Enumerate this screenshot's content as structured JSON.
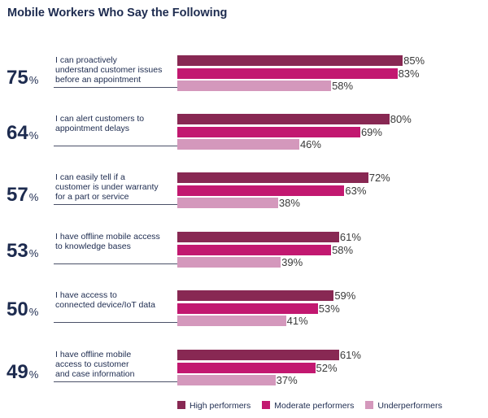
{
  "title": "Mobile Workers Who Say the Following",
  "colors": {
    "High performers": "#882853",
    "Moderate performers": "#c21870",
    "Underperformers": "#d498bc"
  },
  "chart_data": {
    "type": "bar",
    "orientation": "horizontal",
    "title": "Mobile Workers Who Say the Following",
    "xlim": [
      0,
      100
    ],
    "legend_position": "bottom",
    "series_names": [
      "High performers",
      "Moderate performers",
      "Underperformers"
    ],
    "groups": [
      {
        "overall": "75",
        "label": "I can proactively understand customer issues before an appointment",
        "lines": [
          "I can proactively",
          "understand customer issues",
          "before an appointment"
        ],
        "values": [
          85,
          83,
          58
        ]
      },
      {
        "overall": "64",
        "label": "I can alert customers to appointment delays",
        "lines": [
          "I can alert customers to",
          "appointment delays"
        ],
        "values": [
          80,
          69,
          46
        ]
      },
      {
        "overall": "57",
        "label": "I can easily tell if a customer is under warranty for a part or service",
        "lines": [
          "I can easily tell if a",
          "customer is under warranty",
          "for a part or service"
        ],
        "values": [
          72,
          63,
          38
        ]
      },
      {
        "overall": "53",
        "label": "I have offline mobile access to knowledge bases",
        "lines": [
          "I have offline mobile access",
          "to knowledge bases"
        ],
        "values": [
          61,
          58,
          39
        ]
      },
      {
        "overall": "50",
        "label": "I have access to connected device/IoT data",
        "lines": [
          "I have access to",
          "connected device/IoT data"
        ],
        "values": [
          59,
          53,
          41
        ]
      },
      {
        "overall": "49",
        "label": "I have offline mobile access to customer and case information",
        "lines": [
          "I have offline mobile",
          "access to customer",
          "and case information"
        ],
        "values": [
          61,
          52,
          37
        ]
      }
    ],
    "percent_symbol": "%"
  }
}
